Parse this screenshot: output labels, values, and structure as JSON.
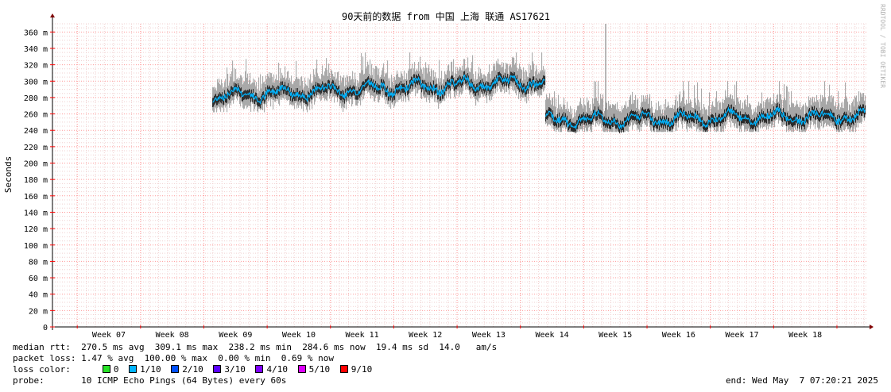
{
  "chart_data": {
    "type": "line",
    "title": "90天前的数据 from 中国 上海 联通 AS17621",
    "ylabel": "Seconds",
    "ylim": [
      0,
      370
    ],
    "yticks": [
      {
        "v": 0,
        "label": "0"
      },
      {
        "v": 20,
        "label": "20 m"
      },
      {
        "v": 40,
        "label": "40 m"
      },
      {
        "v": 60,
        "label": "60 m"
      },
      {
        "v": 80,
        "label": "80 m"
      },
      {
        "v": 100,
        "label": "100 m"
      },
      {
        "v": 120,
        "label": "120 m"
      },
      {
        "v": 140,
        "label": "140 m"
      },
      {
        "v": 160,
        "label": "160 m"
      },
      {
        "v": 180,
        "label": "180 m"
      },
      {
        "v": 200,
        "label": "200 m"
      },
      {
        "v": 220,
        "label": "220 m"
      },
      {
        "v": 240,
        "label": "240 m"
      },
      {
        "v": 260,
        "label": "260 m"
      },
      {
        "v": 280,
        "label": "280 m"
      },
      {
        "v": 300,
        "label": "300 m"
      },
      {
        "v": 320,
        "label": "320 m"
      },
      {
        "v": 340,
        "label": "340 m"
      },
      {
        "v": 360,
        "label": "360 m"
      }
    ],
    "xlabels": [
      "Week 07",
      "Week 08",
      "Week 09",
      "Week 10",
      "Week 11",
      "Week 12",
      "Week 13",
      "Week 14",
      "Week 15",
      "Week 16",
      "Week 17",
      "Week 18"
    ],
    "segments": [
      {
        "from_week": 8.64,
        "to_week": 13.9,
        "median_base": 282,
        "median_trend_end": 300,
        "spread_low": 262,
        "spread_high": 335
      },
      {
        "from_week": 13.9,
        "to_week": 18.95,
        "median_base": 252,
        "median_trend_end": 258,
        "spread_low": 238,
        "spread_high": 300
      }
    ],
    "grid": true,
    "colors": {
      "median": "#00b4ff",
      "smoke": "#808080",
      "min_line": "#00cc00",
      "axis": "#000000",
      "grid": "#ff0000",
      "arrow": "#800000"
    }
  },
  "stats": {
    "median_rtt": "median rtt:  270.5 ms avg  309.1 ms max  238.2 ms min  284.6 ms now  19.4 ms sd  14.0   am/s",
    "packet_loss": "packet loss: 1.47 % avg  100.00 % max  0.00 % min  0.69 % now"
  },
  "loss_color": {
    "label": "loss color:",
    "items": [
      {
        "label": "0",
        "color": "#27e227"
      },
      {
        "label": "1/10",
        "color": "#00b4ff"
      },
      {
        "label": "2/10",
        "color": "#0050ff"
      },
      {
        "label": "3/10",
        "color": "#5a00ff"
      },
      {
        "label": "4/10",
        "color": "#7e00ff"
      },
      {
        "label": "5/10",
        "color": "#dd00ff"
      },
      {
        "label": "9/10",
        "color": "#ff0000"
      }
    ]
  },
  "probe": "probe:       10 ICMP Echo Pings (64 Bytes) every 60s",
  "end": "end: Wed May  7 07:20:21 2025",
  "watermark": "RRDTOOL / TOBI OETIKER"
}
